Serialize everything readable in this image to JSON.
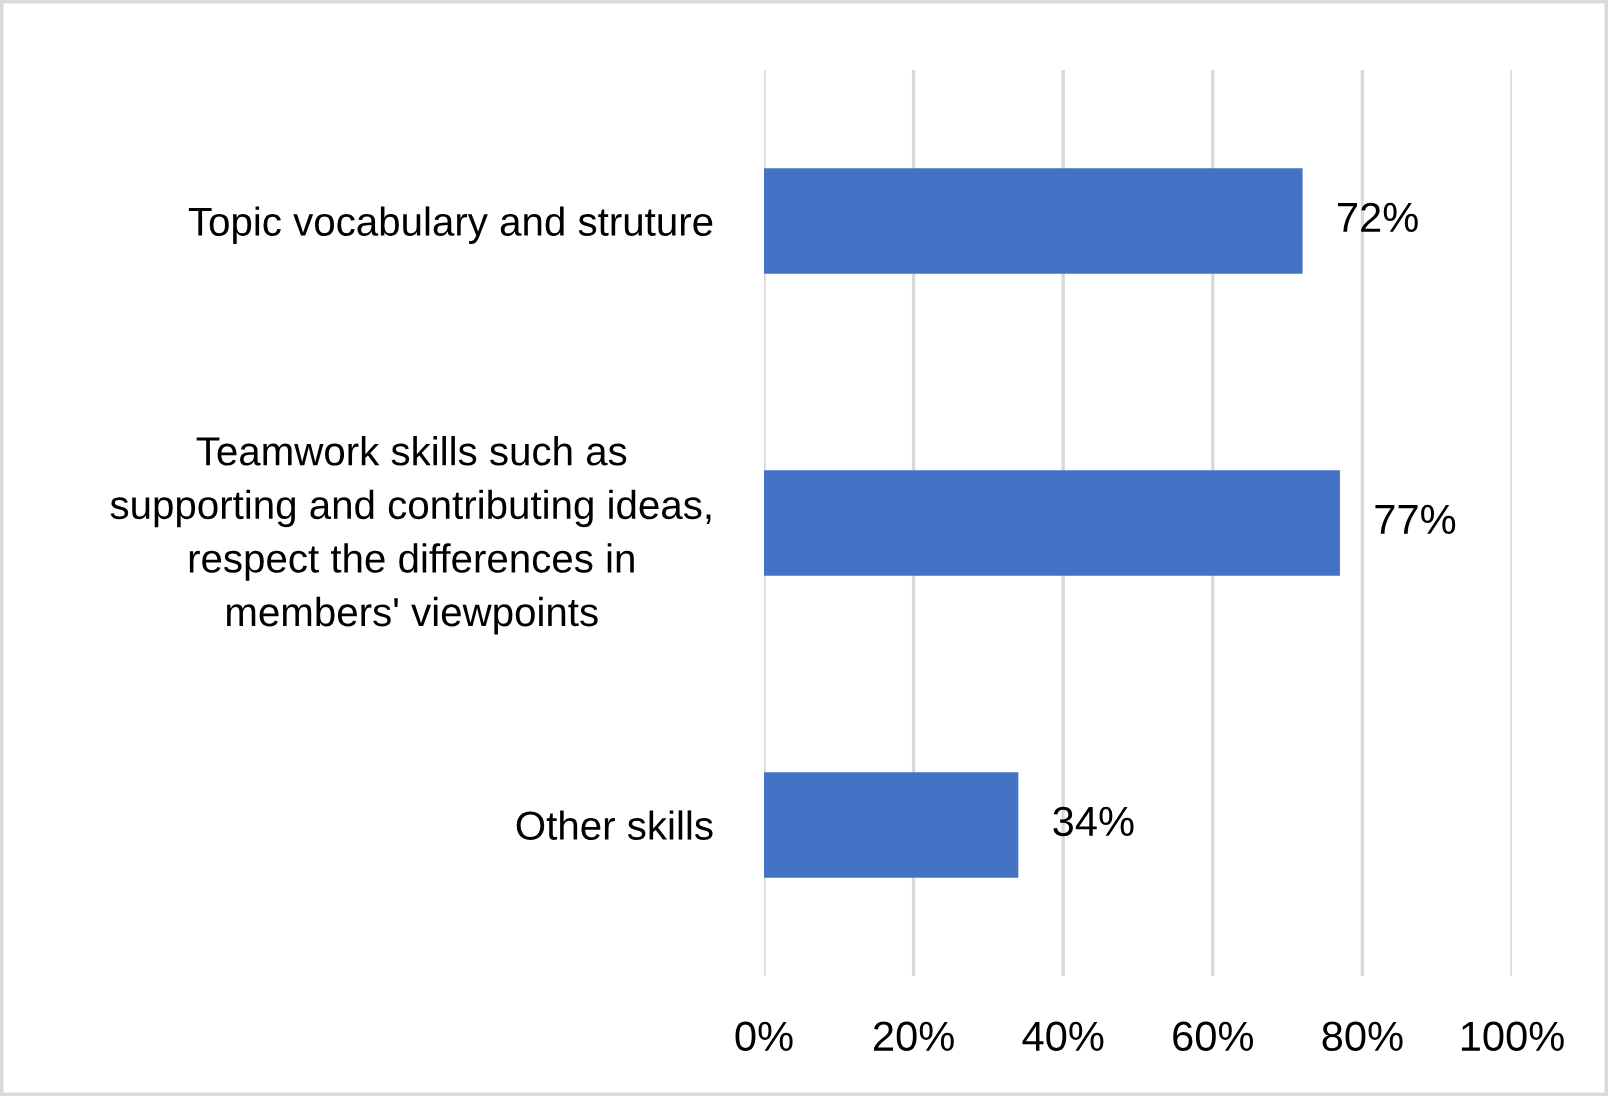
{
  "chart_data": {
    "type": "bar",
    "orientation": "horizontal",
    "categories": [
      "Topic vocabulary and struture",
      "Teamwork skills such as\nsupporting and contributing ideas,\nrespect the differences in\nmembers' viewpoints",
      "Other skills"
    ],
    "values": [
      72,
      77,
      34
    ],
    "color": "#4472c4",
    "value_labels": [
      "72%",
      "77%",
      "34%"
    ],
    "xlim": [
      0,
      100
    ],
    "xticks": [
      {
        "value": 0,
        "label": "0%"
      },
      {
        "value": 20,
        "label": "20%"
      },
      {
        "value": 40,
        "label": "40%"
      },
      {
        "value": 60,
        "label": "60%"
      },
      {
        "value": 80,
        "label": "80%"
      },
      {
        "value": 100,
        "label": "100%"
      }
    ],
    "grid": "x"
  }
}
